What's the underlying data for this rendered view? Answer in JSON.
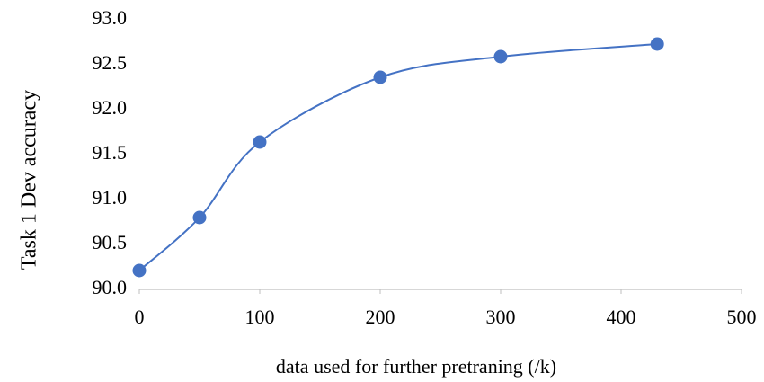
{
  "chart_data": {
    "type": "line",
    "x_label": "data used for further pretraning (/k)",
    "y_label": "Task 1 Dev accuracy",
    "x": [
      0,
      50,
      100,
      200,
      300,
      430
    ],
    "series": [
      {
        "color": "#4472c4",
        "values": [
          90.21,
          90.8,
          91.64,
          92.36,
          92.59,
          92.73
        ]
      }
    ],
    "xlim": [
      0,
      500
    ],
    "xticks": [
      0,
      100,
      200,
      300,
      400,
      500
    ],
    "ylim": [
      90,
      93
    ],
    "yticks": [
      {
        "value": 90,
        "label": "90.0"
      },
      90.5,
      {
        "value": 91,
        "label": "91.0"
      },
      91.5,
      {
        "value": 92,
        "label": "92.0"
      },
      92.5,
      {
        "value": 93,
        "label": "93.0"
      }
    ],
    "grid": false,
    "smooth": true
  }
}
